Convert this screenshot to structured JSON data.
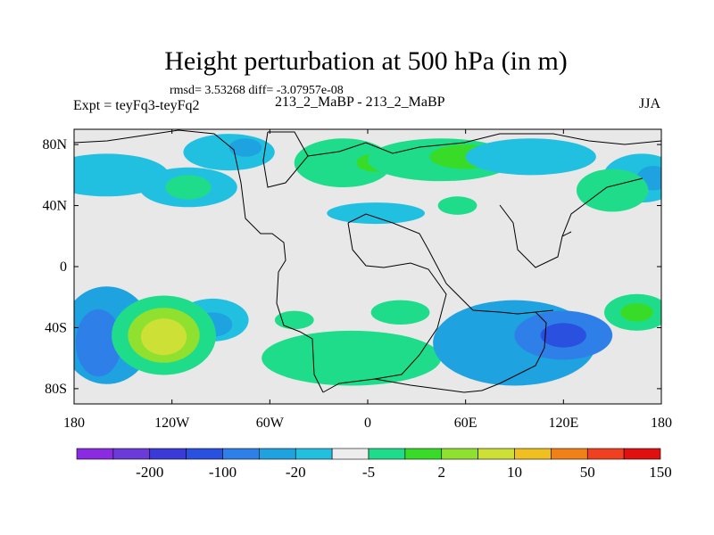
{
  "figure": {
    "title": "Height perturbation at 500 hPa (in m)",
    "stats": "rmsd= 3.53268  diff= -3.07957e-08",
    "left_label": "Expt = teyFq3-teyFq2",
    "center_label": "213_2_MaBP - 213_2_MaBP",
    "right_label": "JJA"
  },
  "map": {
    "x_ticks": [
      {
        "lon": -180,
        "label": "180"
      },
      {
        "lon": -120,
        "label": "120W"
      },
      {
        "lon": -60,
        "label": "60W"
      },
      {
        "lon": 0,
        "label": "0"
      },
      {
        "lon": 60,
        "label": "60E"
      },
      {
        "lon": 120,
        "label": "120E"
      },
      {
        "lon": 180,
        "label": "180"
      }
    ],
    "y_ticks": [
      {
        "lat": 80,
        "label": "80N"
      },
      {
        "lat": 40,
        "label": "40N"
      },
      {
        "lat": 0,
        "label": "0"
      },
      {
        "lat": -40,
        "label": "40S"
      },
      {
        "lat": -80,
        "label": "80S"
      }
    ],
    "background_color": "#e8e8e8"
  },
  "colorbar": {
    "colors": [
      "#8a2be2",
      "#6a3bd8",
      "#3a3ad8",
      "#2a50e0",
      "#2f7fe8",
      "#1fa2e0",
      "#22c0e0",
      "#ededed",
      "#1edc8a",
      "#38dc28",
      "#90e030",
      "#cce036",
      "#f0c020",
      "#f08018",
      "#f04020",
      "#e01010"
    ],
    "labels": [
      {
        "after_index": 1,
        "text": "-200"
      },
      {
        "after_index": 3,
        "text": "-100"
      },
      {
        "after_index": 5,
        "text": "-20"
      },
      {
        "after_index": 7,
        "text": "-5"
      },
      {
        "after_index": 9,
        "text": "2"
      },
      {
        "after_index": 11,
        "text": "10"
      },
      {
        "after_index": 13,
        "text": "50"
      },
      {
        "after_index": 15,
        "text": "150"
      }
    ]
  },
  "anomalies": [
    {
      "lon": -160,
      "lat": 60,
      "rx": 38,
      "ry": 14,
      "color": "#22c0e0"
    },
    {
      "lon": -110,
      "lat": 52,
      "rx": 30,
      "ry": 13,
      "color": "#22c0e0"
    },
    {
      "lon": -110,
      "lat": 52,
      "rx": 14,
      "ry": 8,
      "color": "#1edc8a"
    },
    {
      "lon": -85,
      "lat": 75,
      "rx": 28,
      "ry": 12,
      "color": "#22c0e0"
    },
    {
      "lon": -75,
      "lat": 78,
      "rx": 10,
      "ry": 6,
      "color": "#1fa2e0"
    },
    {
      "lon": -15,
      "lat": 68,
      "rx": 30,
      "ry": 16,
      "color": "#1edc8a"
    },
    {
      "lon": 5,
      "lat": 68,
      "rx": 12,
      "ry": 6,
      "color": "#38dc28"
    },
    {
      "lon": 45,
      "lat": 70,
      "rx": 45,
      "ry": 14,
      "color": "#1edc8a"
    },
    {
      "lon": 60,
      "lat": 72,
      "rx": 22,
      "ry": 8,
      "color": "#38dc28"
    },
    {
      "lon": 100,
      "lat": 72,
      "rx": 40,
      "ry": 12,
      "color": "#22c0e0"
    },
    {
      "lon": 168,
      "lat": 58,
      "rx": 24,
      "ry": 16,
      "color": "#22c0e0"
    },
    {
      "lon": 175,
      "lat": 58,
      "rx": 10,
      "ry": 8,
      "color": "#1fa2e0"
    },
    {
      "lon": 150,
      "lat": 50,
      "rx": 22,
      "ry": 14,
      "color": "#1edc8a"
    },
    {
      "lon": 5,
      "lat": 35,
      "rx": 30,
      "ry": 7,
      "color": "#22c0e0"
    },
    {
      "lon": 55,
      "lat": 40,
      "rx": 12,
      "ry": 6,
      "color": "#1edc8a"
    },
    {
      "lon": -95,
      "lat": -35,
      "rx": 22,
      "ry": 14,
      "color": "#22c0e0"
    },
    {
      "lon": -95,
      "lat": -38,
      "rx": 12,
      "ry": 8,
      "color": "#1fa2e0"
    },
    {
      "lon": -160,
      "lat": -45,
      "rx": 28,
      "ry": 32,
      "color": "#1fa2e0"
    },
    {
      "lon": -165,
      "lat": -50,
      "rx": 14,
      "ry": 22,
      "color": "#2f7fe8"
    },
    {
      "lon": -125,
      "lat": -45,
      "rx": 32,
      "ry": 26,
      "color": "#1edc8a"
    },
    {
      "lon": -125,
      "lat": -45,
      "rx": 22,
      "ry": 18,
      "color": "#90e030"
    },
    {
      "lon": -125,
      "lat": -46,
      "rx": 14,
      "ry": 12,
      "color": "#cce036"
    },
    {
      "lon": -45,
      "lat": -35,
      "rx": 12,
      "ry": 6,
      "color": "#1edc8a"
    },
    {
      "lon": -10,
      "lat": -60,
      "rx": 55,
      "ry": 18,
      "color": "#1edc8a"
    },
    {
      "lon": 20,
      "lat": -30,
      "rx": 18,
      "ry": 8,
      "color": "#1edc8a"
    },
    {
      "lon": 90,
      "lat": -50,
      "rx": 50,
      "ry": 28,
      "color": "#1fa2e0"
    },
    {
      "lon": 120,
      "lat": -45,
      "rx": 30,
      "ry": 16,
      "color": "#2f7fe8"
    },
    {
      "lon": 120,
      "lat": -45,
      "rx": 14,
      "ry": 8,
      "color": "#2a50e0"
    },
    {
      "lon": 165,
      "lat": -30,
      "rx": 20,
      "ry": 12,
      "color": "#1edc8a"
    },
    {
      "lon": 165,
      "lat": -30,
      "rx": 10,
      "ry": 6,
      "color": "#38dc28"
    }
  ]
}
